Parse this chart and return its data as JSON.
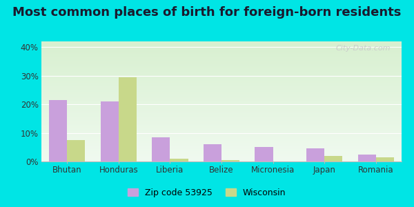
{
  "title": "Most common places of birth for foreign-born residents",
  "categories": [
    "Bhutan",
    "Honduras",
    "Liberia",
    "Belize",
    "Micronesia",
    "Japan",
    "Romania"
  ],
  "zip_values": [
    21.5,
    21.0,
    8.5,
    6.0,
    5.0,
    4.5,
    2.5
  ],
  "wi_values": [
    7.5,
    29.5,
    1.0,
    0.5,
    0.0,
    2.0,
    1.5
  ],
  "zip_color": "#c9a0dc",
  "wi_color": "#c8d88a",
  "ylim": [
    0,
    42
  ],
  "yticks": [
    0,
    10,
    20,
    30,
    40
  ],
  "ytick_labels": [
    "0%",
    "10%",
    "20%",
    "30%",
    "40%"
  ],
  "legend_zip": "Zip code 53925",
  "legend_wi": "Wisconsin",
  "bar_width": 0.35,
  "background_outer": "#00e5e5",
  "watermark": "City-Data.com",
  "title_fontsize": 13,
  "axis_fontsize": 8.5,
  "legend_fontsize": 9
}
